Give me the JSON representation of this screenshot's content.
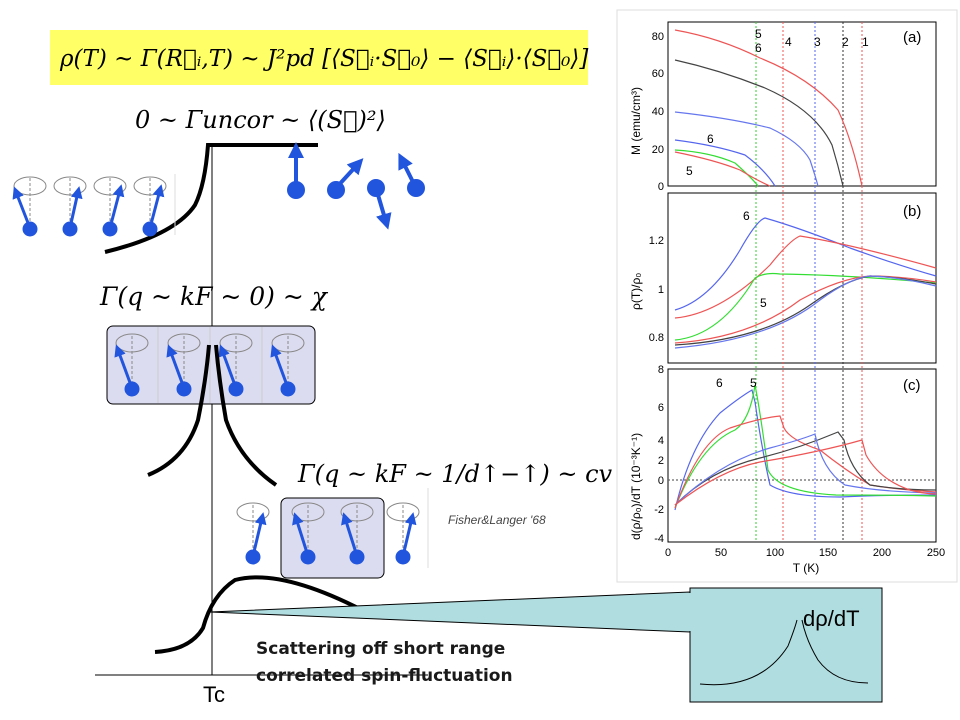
{
  "equations": {
    "main": "ρ(T) ~ Γ(R⃗ᵢ,T) ~ J²pd [⟨S⃗ᵢ·S⃗₀⟩ − ⟨S⃗ᵢ⟩·⟨S⃗₀⟩]",
    "uncorrelated": "0 ~ Γuncor ~ ⟨(S⃗)²⟩",
    "q_zero": "Γ(q ~ kF ~ 0) ~ χ",
    "q_inverse_d": "Γ(q ~ kF ~ 1/d↑−↑) ~ cv"
  },
  "citation": "Fisher&Langer '68",
  "caption": {
    "line1": "Scattering off short range",
    "line2": "correlated spin-fluctuation"
  },
  "tc_label": "Tc",
  "inset_label": "dρ/dT",
  "colors": {
    "formula_bg": "#ffff66",
    "spin_blue": "#2255dd",
    "panel_bg": "#dcdcf0",
    "inset_bg": "#b0dde0",
    "series_1": "#ee5555",
    "series_2": "#333333",
    "series_3": "#6677ee",
    "series_4": "#ee5555",
    "series_5": "#33dd33",
    "series_6": "#5566ee"
  },
  "figure": {
    "panels": [
      {
        "tag": "(a)",
        "ylabel": "M (emu/cm³)",
        "yticks": [
          "80",
          "60",
          "40",
          "20",
          "0"
        ]
      },
      {
        "tag": "(b)",
        "ylabel": "ρ(T)/ρ₀",
        "yticks": [
          "1.2",
          "1",
          "0.8"
        ]
      },
      {
        "tag": "(c)",
        "ylabel": "d(ρ/ρ₀)/dT (10⁻³K⁻¹)",
        "yticks": [
          "8",
          "6",
          "4",
          "2",
          "0",
          "-2",
          "-4"
        ]
      }
    ],
    "xticks": [
      "0",
      "50",
      "100",
      "150",
      "200",
      "250"
    ],
    "xlabel": "T (K)",
    "transition_labels": [
      "5",
      "6",
      "4",
      "3",
      "2",
      "1"
    ],
    "curve_labels": [
      "6",
      "5",
      "6",
      "5",
      "6",
      "5"
    ]
  }
}
